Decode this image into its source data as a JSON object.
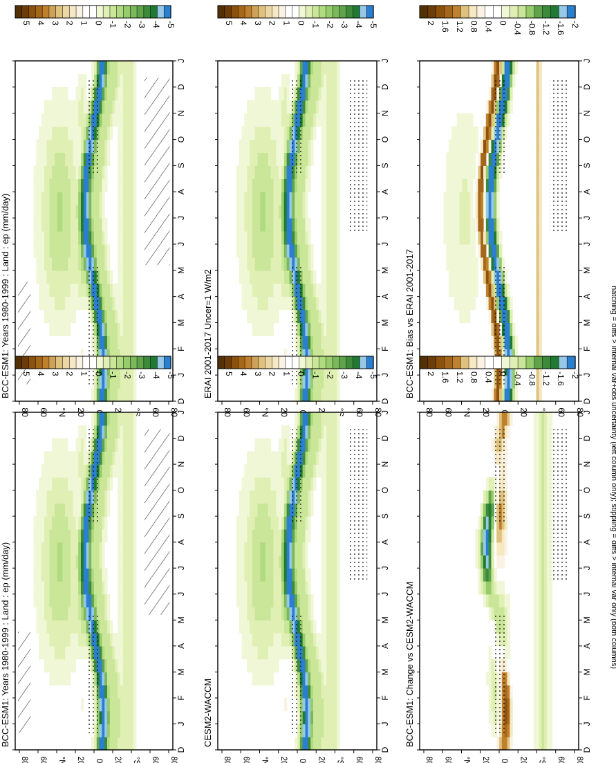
{
  "figure": {
    "footnote": "hatching = diffs > internal var+obs uncertainty (left column only); stippling = diffs > internal var only (both columns)"
  },
  "colorbars": {
    "field": {
      "labels": [
        "5",
        "4",
        "3",
        "2",
        "1",
        "0",
        "-1",
        "-2",
        "-3",
        "-4",
        "-5"
      ]
    },
    "diff": {
      "labels": [
        "2",
        "1.6",
        "1.2",
        "0.8",
        "0.4",
        "0",
        "-0.4",
        "-0.8",
        "-1.2",
        "-1.6",
        "-2"
      ]
    },
    "colors_field": [
      "#543005",
      "#6c3d08",
      "#8c510a",
      "#a5671a",
      "#bf812d",
      "#cfa25a",
      "#dfc27d",
      "#ebd8a6",
      "#f6e8c3",
      "#faf3e3",
      "#ffffff",
      "#ffffff",
      "#f0f7d6",
      "#e0f0b5",
      "#c9e699",
      "#b1db81",
      "#96cc6c",
      "#7bb85c",
      "#5fa34a",
      "#3d8a3a",
      "#217a34",
      "#98c8e8",
      "#2b7fd0"
    ],
    "colors_diff": [
      "#543005",
      "#6c3d08",
      "#8c510a",
      "#a5671a",
      "#bf812d",
      "#dfc27d",
      "#f6e8c3",
      "#faf3e3",
      "#ffffff",
      "#ffffff",
      "#f0f7d6",
      "#e0f0b5",
      "#c9e699",
      "#96cc6c",
      "#5fa34a",
      "#3d8a3a",
      "#217a34",
      "#98c8e8",
      "#2b7fd0"
    ]
  },
  "chart_data": [
    {
      "type": "heatmap",
      "title": "BCC-ESM1: Years 1980-1999 : Land : ep (mm/day)",
      "x": [
        "D",
        "J",
        "F",
        "M",
        "A",
        "M",
        "J",
        "J",
        "A",
        "S",
        "O",
        "N",
        "D",
        "J"
      ],
      "y": [
        "80",
        "60",
        "°N",
        "20",
        "0",
        "20",
        "°S",
        "60",
        "80"
      ],
      "colorbar": "field",
      "value_range": [
        -5,
        5
      ]
    },
    {
      "type": "heatmap",
      "title": "BCC-ESM1: Years 1980-1999 : Land : ep (mm/day)",
      "x": [
        "D",
        "J",
        "F",
        "M",
        "A",
        "M",
        "J",
        "J",
        "A",
        "S",
        "O",
        "N",
        "D",
        "J"
      ],
      "y": [
        "80",
        "60",
        "°N",
        "20",
        "0",
        "20",
        "°S",
        "60",
        "80"
      ],
      "colorbar": "field",
      "value_range": [
        -5,
        5
      ]
    },
    {
      "type": "heatmap",
      "title": "ERAI 2001-2017 Uncer=1 W/m2",
      "x": [
        "D",
        "J",
        "F",
        "M",
        "A",
        "M",
        "J",
        "J",
        "A",
        "S",
        "O",
        "N",
        "D",
        "J"
      ],
      "y": [
        "80",
        "60",
        "°N",
        "20",
        "0",
        "20",
        "°S",
        "60",
        "80"
      ],
      "colorbar": "field",
      "value_range": [
        -5,
        5
      ]
    },
    {
      "type": "heatmap",
      "title": "CESM2-WACCM",
      "x": [
        "D",
        "J",
        "F",
        "M",
        "A",
        "M",
        "J",
        "J",
        "A",
        "S",
        "O",
        "N",
        "D",
        "J"
      ],
      "y": [
        "80",
        "60",
        "°N",
        "20",
        "0",
        "20",
        "°S",
        "60",
        "80"
      ],
      "colorbar": "field",
      "value_range": [
        -5,
        5
      ]
    },
    {
      "type": "heatmap",
      "title": "BCC-ESM1: Bias vs ERAI 2001-2017",
      "x": [
        "D",
        "J",
        "F",
        "M",
        "A",
        "M",
        "J",
        "J",
        "A",
        "S",
        "O",
        "N",
        "D",
        "J"
      ],
      "y": [
        "80",
        "60",
        "°N",
        "20",
        "0",
        "20",
        "°S",
        "60",
        "80"
      ],
      "colorbar": "diff",
      "value_range": [
        -2,
        2
      ]
    },
    {
      "type": "heatmap",
      "title": "BCC-ESM1: Change vs CESM2-WACCM",
      "x": [
        "D",
        "J",
        "F",
        "M",
        "A",
        "M",
        "J",
        "J",
        "A",
        "S",
        "O",
        "N",
        "D",
        "J"
      ],
      "y": [
        "80",
        "60",
        "°N",
        "20",
        "0",
        "20",
        "°S",
        "60",
        "80"
      ],
      "colorbar": "diff",
      "value_range": [
        -2,
        2
      ]
    }
  ]
}
